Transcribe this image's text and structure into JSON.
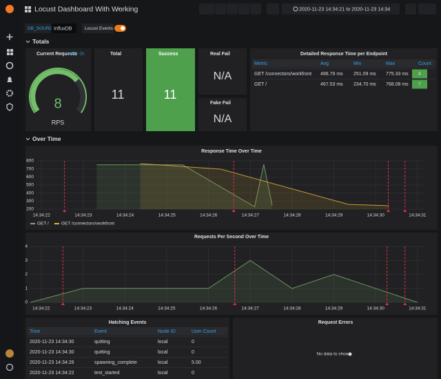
{
  "header": {
    "title": "Locust Dashboard With Working",
    "time_range": "2020-11-23 14:34:21 to 2020-11-23 14:34:31"
  },
  "variables": {
    "db_source_label": "DB_SOURCE",
    "db_source_value": "InfluxDB",
    "events_label": "Locust Events"
  },
  "rows": [
    "Totals",
    "Over Time"
  ],
  "stats": {
    "current_requests": {
      "title": "Current Requests",
      "note": "ushift -2s",
      "value": 8,
      "unit": "RPS"
    },
    "total": {
      "title": "Total",
      "value": 11
    },
    "success": {
      "title": "Success",
      "value": 11
    },
    "real_fail": {
      "title": "Real Fail",
      "value": "N/A"
    },
    "fake_fail": {
      "title": "Fake Fail",
      "value": "N/A"
    }
  },
  "endpoint_table": {
    "title": "Detailed Response Time per Endpoint",
    "columns": [
      "Metric",
      "Avg",
      "Min",
      "Max",
      "Count"
    ],
    "rows": [
      [
        "GET /connectors/workfront",
        "496.79 ms",
        "251.09 ms",
        "775.33 ms",
        4
      ],
      [
        "GET /",
        "467.53 ms",
        "234.70 ms",
        "768.08 ms",
        7
      ]
    ]
  },
  "chart_data": [
    {
      "type": "line",
      "title": "Response Time Over Time",
      "xlim": [
        21.88,
        31.15
      ],
      "xticks": [
        {
          "value": 22,
          "label": "14:34:22"
        },
        {
          "value": 23,
          "label": "14:34:23"
        },
        {
          "value": 24,
          "label": "14:34:24"
        },
        {
          "value": 25,
          "label": "14:34:25"
        },
        {
          "value": 26,
          "label": "14:34:26"
        },
        {
          "value": 27,
          "label": "14:34:27"
        },
        {
          "value": 28,
          "label": "14:34:28"
        },
        {
          "value": 29,
          "label": "14:34:29"
        },
        {
          "value": 30,
          "label": "14:34:30"
        },
        {
          "value": 31,
          "label": "14:34:31"
        }
      ],
      "ylim": [
        200,
        800
      ],
      "yticks": [
        200,
        300,
        400,
        500,
        600,
        700,
        800
      ],
      "grid": true,
      "events": [
        22.55,
        26.6,
        30.3,
        30.7
      ],
      "series": [
        {
          "name": "GET /",
          "color": "#7eb26d",
          "x": [
            23.32,
            25.38,
            27.1,
            27.32,
            27.52
          ],
          "values": [
            750,
            750,
            230,
            757,
            251
          ]
        },
        {
          "name": "GET /connectors/workfront",
          "color": "#eab839",
          "x": [
            24.36,
            26.29,
            29.34,
            30.32
          ],
          "values": [
            766,
            697,
            260,
            243
          ]
        }
      ]
    },
    {
      "type": "line",
      "title": "Requests Per Second Over Time",
      "xlim": [
        21.74,
        31.15
      ],
      "xticks": [
        {
          "value": 22,
          "label": "14:34:22"
        },
        {
          "value": 23,
          "label": "14:34:23"
        },
        {
          "value": 24,
          "label": "14:34:24"
        },
        {
          "value": 25,
          "label": "14:34:25"
        },
        {
          "value": 26,
          "label": "14:34:26"
        },
        {
          "value": 27,
          "label": "14:34:27"
        },
        {
          "value": 28,
          "label": "14:34:28"
        },
        {
          "value": 29,
          "label": "14:34:29"
        },
        {
          "value": 30,
          "label": "14:34:30"
        },
        {
          "value": 31,
          "label": "14:34:31"
        }
      ],
      "ylim": [
        0,
        4
      ],
      "yticks": [
        0,
        1,
        2,
        3,
        4
      ],
      "grid": true,
      "events": [
        22.52,
        26.63,
        30.27,
        30.7
      ],
      "series": [
        {
          "color": "#7eb26d",
          "x": [
            21.74,
            23,
            26,
            27,
            28,
            29,
            30,
            31
          ],
          "values": [
            0,
            1,
            1,
            3,
            1,
            2,
            1,
            0
          ]
        }
      ]
    }
  ],
  "hatching_table": {
    "title": "Hatching Events",
    "columns": [
      "Time",
      "Event",
      "Node ID",
      "User Count"
    ],
    "rows": [
      [
        "2020-11-23 14:34:30",
        "quitting",
        "local",
        0
      ],
      [
        "2020-11-23 14:34:30",
        "quitting",
        "local",
        0
      ],
      [
        "2020-11-23 14:34:26",
        "spawning_complete",
        "local",
        "5.00"
      ],
      [
        "2020-11-23 14:34:22",
        "test_started",
        "local",
        0
      ]
    ]
  },
  "errors": {
    "title": "Request Errors",
    "message": "No data to show"
  }
}
